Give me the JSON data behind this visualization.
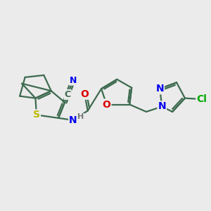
{
  "background_color": "#ebebeb",
  "bond_color": "#3d6b50",
  "bond_width": 1.6,
  "atom_colors": {
    "N": "#0000ee",
    "O": "#dd0000",
    "S": "#bbbb00",
    "Cl": "#00aa00",
    "C": "#3d6b50",
    "H": "#777777"
  },
  "font_size_atom": 10
}
